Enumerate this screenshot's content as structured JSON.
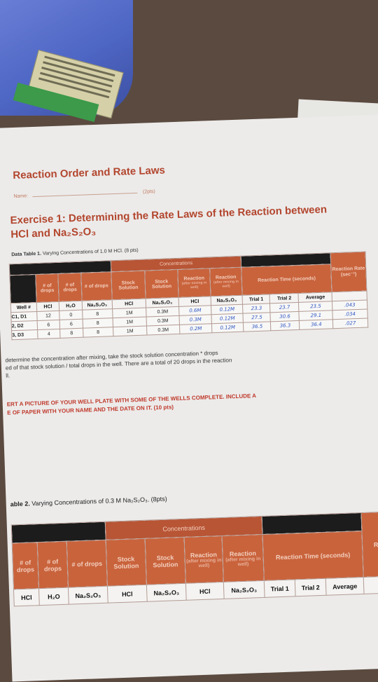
{
  "worksheet": {
    "title": "Reaction Order and Rate Laws",
    "name_label": "Name:",
    "points": "(2pts)",
    "exercise_title": "Exercise 1: Determining the Rate Laws of the Reaction between HCl and Na₂S₂O₃",
    "table1_caption_bold": "Data Table 1.",
    "table1_caption_rest": "Varying Concentrations of 1.0 M HCl. (8 pts)",
    "concentrations_label": "Concentrations",
    "headers": {
      "drops": "# of drops",
      "stock": "Stock Solution",
      "reaction_top": "Reaction",
      "reaction_sub": "(after mixing in well)",
      "reaction_time": "Reaction Time (seconds)",
      "reaction_rate": "Reaction Rate (sec⁻¹)"
    },
    "columns": [
      "Well #",
      "HCl",
      "H₂O",
      "Na₂S₂O₃",
      "HCl",
      "Na₂S₂O₃",
      "HCl",
      "Na₂S₂O₃",
      "Trial 1",
      "Trial 2",
      "Average"
    ],
    "rows": [
      {
        "well": "C1, D1",
        "hcl": "12",
        "h2o": "0",
        "na": "8",
        "s_hcl": "1M",
        "s_na": "0.3M",
        "r_hcl": "0.6M",
        "r_na": "0.12M",
        "t1": "23.3",
        "t2": "23.7",
        "avg": "23.5",
        "rate": ".043"
      },
      {
        "well": "2, D2",
        "hcl": "6",
        "h2o": "6",
        "na": "8",
        "s_hcl": "1M",
        "s_na": "0.3M",
        "r_hcl": "0.3M",
        "r_na": "0.12M",
        "t1": "27.5",
        "t2": "30.6",
        "avg": "29.1",
        "rate": ".034"
      },
      {
        "well": "3, D3",
        "hcl": "4",
        "h2o": "8",
        "na": "8",
        "s_hcl": "1M",
        "s_na": "0.3M",
        "r_hcl": "0.2M",
        "r_na": "0.12M",
        "t1": "36.5",
        "t2": "36.3",
        "avg": "36.4",
        "rate": ".027"
      }
    ],
    "note_line1": "determine the concentration after mixing, take the stock solution concentration * drops",
    "note_line2": "ed of that stock solution / total drops in the well. There are a total of 20 drops in the reaction",
    "note_line3": "ll.",
    "insert_line1": "ERT A PICTURE OF YOUR WELL PLATE WITH SOME OF THE WELLS COMPLETE. INCLUDE A",
    "insert_line2": "E OF PAPER WITH YOUR NAME AND THE DATE ON IT. (10 pts)",
    "table2_caption_bold": "able 2.",
    "table2_caption_rest": "Varying Concentrations of 0.3 M Na₂S₂O₃. (8pts)",
    "table2_rate_partial": "Re",
    "table2_columns": [
      "HCl",
      "H₂O",
      "Na₂S₂O₃",
      "HCl",
      "Na₂S₂O₃",
      "HCl",
      "Na₂S₂O₃",
      "Trial 1",
      "Trial 2",
      "Average"
    ]
  },
  "colors": {
    "header_orange": "#c9633c",
    "title_red": "#b3462e",
    "handwriting_blue": "#2f55c2"
  }
}
